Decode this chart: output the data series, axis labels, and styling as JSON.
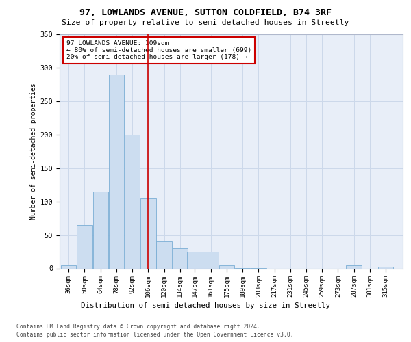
{
  "title1": "97, LOWLANDS AVENUE, SUTTON COLDFIELD, B74 3RF",
  "title2": "Size of property relative to semi-detached houses in Streetly",
  "xlabel": "Distribution of semi-detached houses by size in Streetly",
  "ylabel": "Number of semi-detached properties",
  "footnote1": "Contains HM Land Registry data © Crown copyright and database right 2024.",
  "footnote2": "Contains public sector information licensed under the Open Government Licence v3.0.",
  "annotation_line1": "97 LOWLANDS AVENUE: 109sqm",
  "annotation_line2": "← 80% of semi-detached houses are smaller (699)",
  "annotation_line3": "20% of semi-detached houses are larger (178) →",
  "bin_starts": [
    36,
    50,
    64,
    78,
    92,
    106,
    120,
    134,
    147,
    161,
    175,
    189,
    203,
    217,
    231,
    245,
    259,
    273,
    287,
    301,
    315
  ],
  "bin_labels": [
    "36sqm",
    "50sqm",
    "64sqm",
    "78sqm",
    "92sqm",
    "106sqm",
    "120sqm",
    "134sqm",
    "147sqm",
    "161sqm",
    "175sqm",
    "189sqm",
    "203sqm",
    "217sqm",
    "231sqm",
    "245sqm",
    "259sqm",
    "273sqm",
    "287sqm",
    "301sqm",
    "315sqm"
  ],
  "counts": [
    5,
    65,
    115,
    290,
    200,
    105,
    40,
    30,
    25,
    25,
    5,
    1,
    1,
    0,
    0,
    0,
    0,
    0,
    5,
    0,
    3
  ],
  "bar_color": "#ccddf0",
  "bar_edge_color": "#7aadd4",
  "vline_color": "#cc0000",
  "vline_x": 106,
  "annotation_box_color": "#cc0000",
  "grid_color": "#ccd8ea",
  "background_color": "#e8eef8",
  "ylim": [
    0,
    350
  ],
  "yticks": [
    0,
    50,
    100,
    150,
    200,
    250,
    300,
    350
  ]
}
